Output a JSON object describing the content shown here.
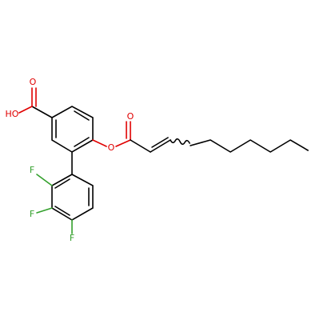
{
  "atoms": [
    "O",
    "HO",
    "O",
    "O",
    "F",
    "F",
    "F"
  ]
}
